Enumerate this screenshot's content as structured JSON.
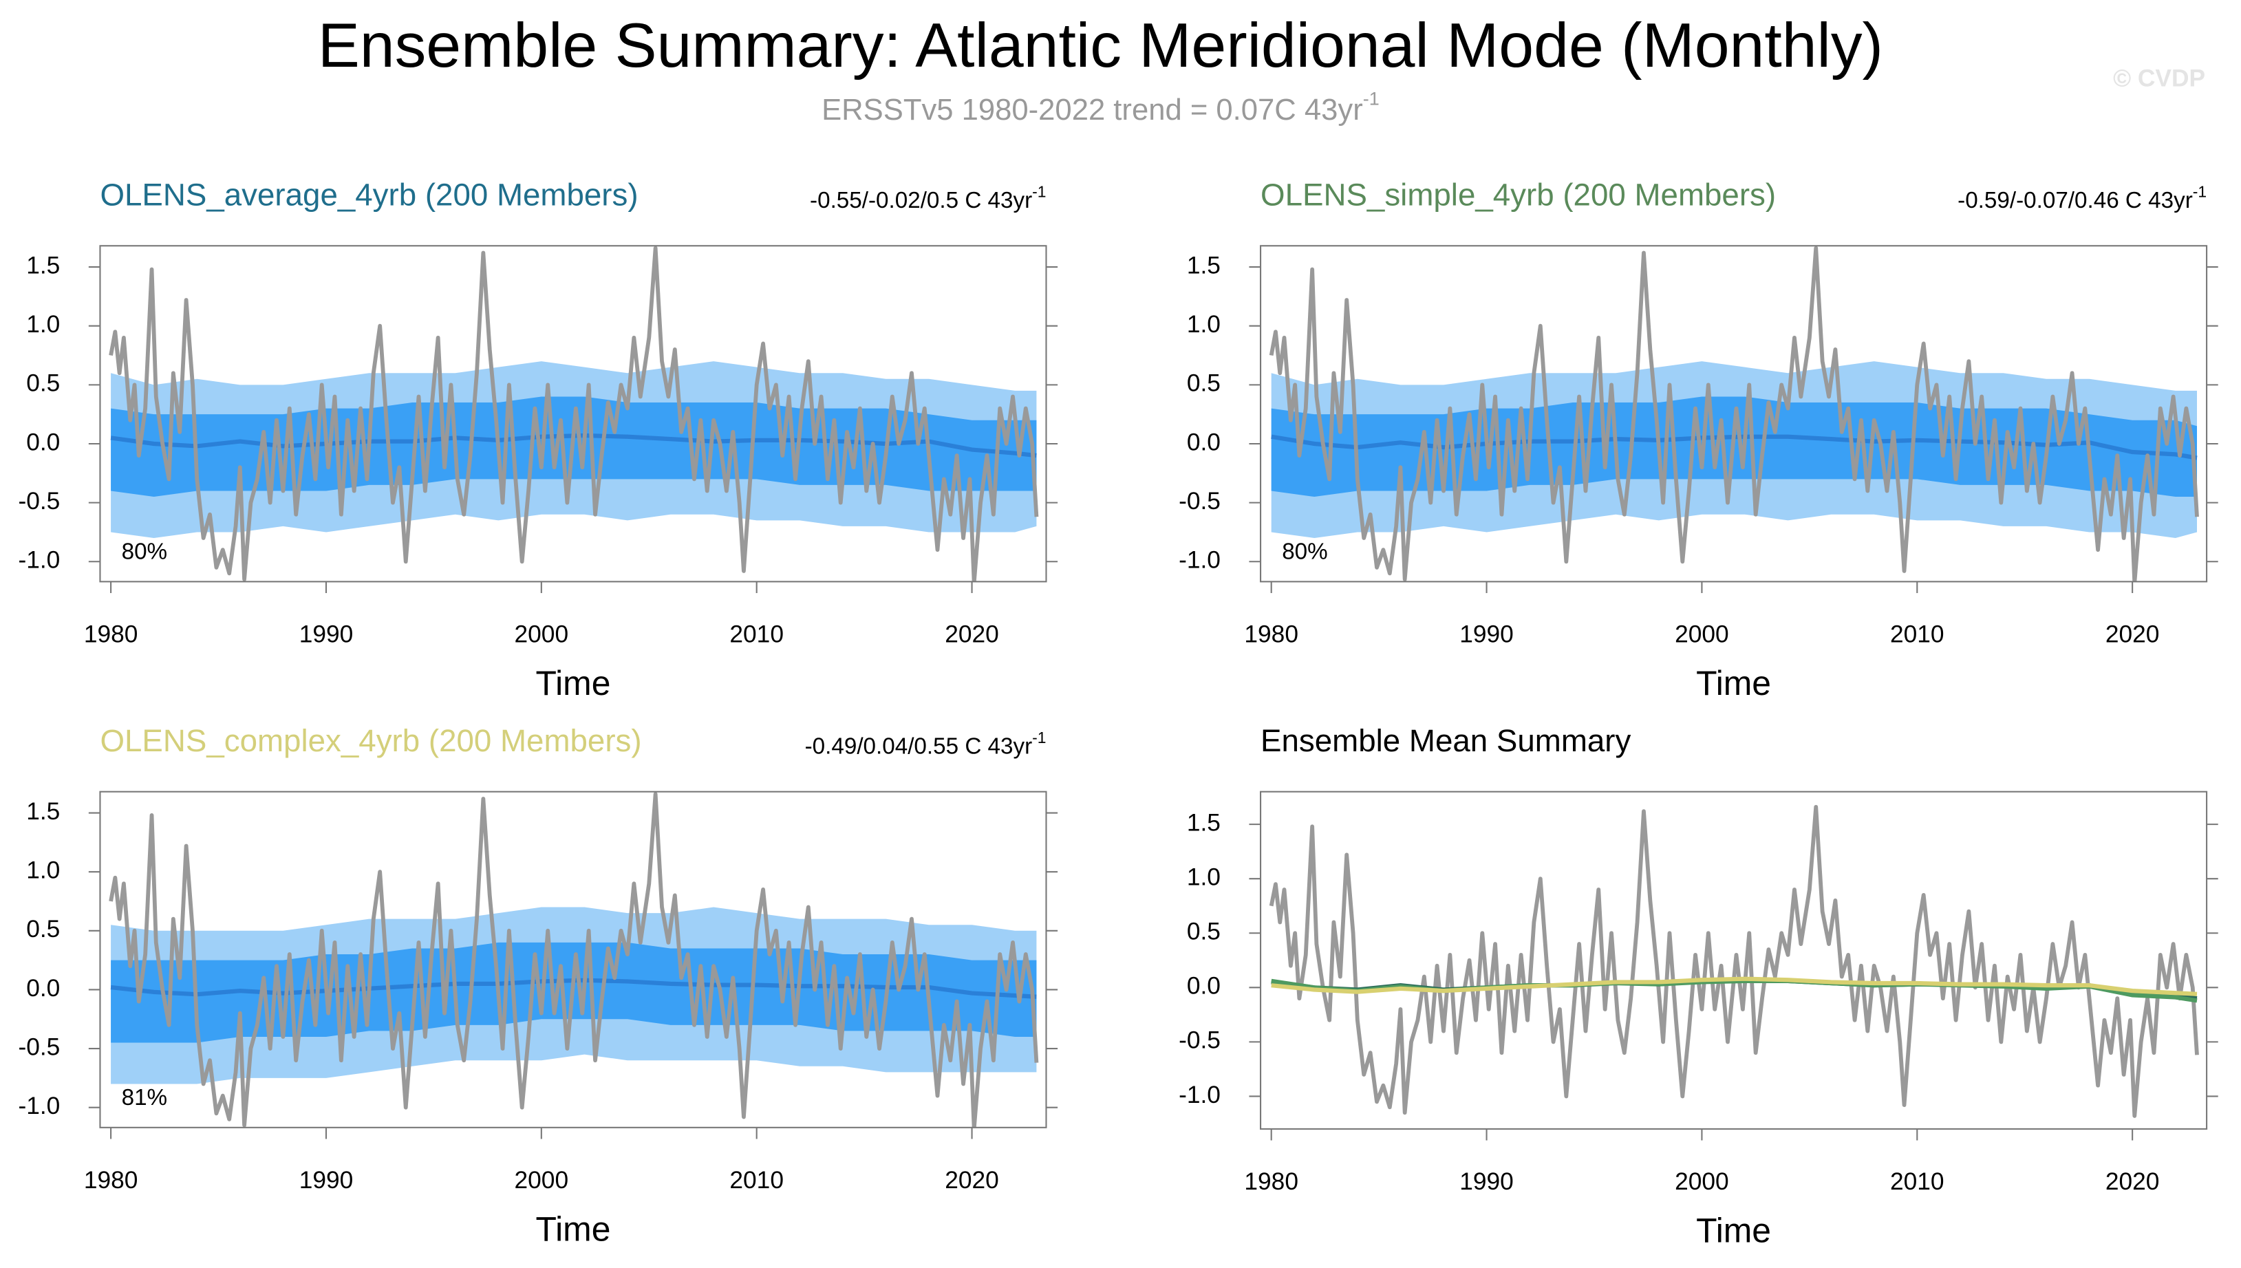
{
  "title": "Ensemble Summary: Atlantic Meridional Mode (Monthly)",
  "subtitle": "ERSSTv5 1980-2022 trend = 0.07C 43yr",
  "subtitle_sup": "-1",
  "watermark": "© CVDP",
  "observed": {
    "color": "#999999",
    "x": [
      1980.0,
      1980.2,
      1980.4,
      1980.6,
      1980.9,
      1981.1,
      1981.3,
      1981.6,
      1981.9,
      1982.1,
      1982.4,
      1982.7,
      1982.9,
      1983.2,
      1983.5,
      1983.8,
      1984.0,
      1984.3,
      1984.6,
      1984.9,
      1985.2,
      1985.5,
      1985.8,
      1986.0,
      1986.2,
      1986.5,
      1986.8,
      1987.1,
      1987.4,
      1987.7,
      1988.0,
      1988.3,
      1988.6,
      1988.9,
      1989.2,
      1989.5,
      1989.8,
      1990.1,
      1990.4,
      1990.7,
      1991.0,
      1991.3,
      1991.6,
      1991.9,
      1992.2,
      1992.5,
      1992.8,
      1993.1,
      1993.4,
      1993.7,
      1994.0,
      1994.3,
      1994.6,
      1994.9,
      1995.2,
      1995.5,
      1995.8,
      1996.1,
      1996.4,
      1996.7,
      1997.0,
      1997.3,
      1997.6,
      1997.9,
      1998.2,
      1998.5,
      1998.8,
      1999.1,
      1999.4,
      1999.7,
      2000.0,
      2000.3,
      2000.6,
      2000.9,
      2001.2,
      2001.6,
      2001.9,
      2002.2,
      2002.5,
      2002.8,
      2003.1,
      2003.4,
      2003.7,
      2004.0,
      2004.3,
      2004.6,
      2005.0,
      2005.3,
      2005.6,
      2005.9,
      2006.2,
      2006.5,
      2006.8,
      2007.1,
      2007.4,
      2007.7,
      2008.0,
      2008.3,
      2008.6,
      2008.9,
      2009.2,
      2009.4,
      2009.7,
      2010.0,
      2010.3,
      2010.6,
      2010.9,
      2011.2,
      2011.5,
      2011.8,
      2012.1,
      2012.4,
      2012.7,
      2013.0,
      2013.3,
      2013.6,
      2013.9,
      2014.2,
      2014.5,
      2014.8,
      2015.1,
      2015.4,
      2015.7,
      2016.0,
      2016.3,
      2016.6,
      2016.9,
      2017.2,
      2017.5,
      2017.8,
      2018.1,
      2018.4,
      2018.7,
      2019.0,
      2019.3,
      2019.6,
      2019.9,
      2020.1,
      2020.4,
      2020.7,
      2021.0,
      2021.3,
      2021.6,
      2021.9,
      2022.2,
      2022.5,
      2022.8,
      2023.0
    ],
    "values": [
      0.75,
      0.95,
      0.6,
      0.9,
      0.2,
      0.5,
      -0.1,
      0.3,
      1.48,
      0.4,
      0.0,
      -0.3,
      0.6,
      0.1,
      1.22,
      0.5,
      -0.3,
      -0.8,
      -0.6,
      -1.05,
      -0.9,
      -1.1,
      -0.7,
      -0.2,
      -1.15,
      -0.5,
      -0.3,
      0.1,
      -0.5,
      0.2,
      -0.4,
      0.3,
      -0.6,
      -0.1,
      0.25,
      -0.3,
      0.5,
      -0.2,
      0.4,
      -0.6,
      0.2,
      -0.4,
      0.3,
      -0.3,
      0.6,
      1.0,
      0.2,
      -0.5,
      -0.2,
      -1.0,
      -0.3,
      0.4,
      -0.4,
      0.3,
      0.9,
      -0.2,
      0.5,
      -0.3,
      -0.6,
      -0.1,
      0.6,
      1.62,
      0.8,
      0.2,
      -0.5,
      0.5,
      -0.3,
      -1.0,
      -0.4,
      0.3,
      -0.2,
      0.5,
      -0.2,
      0.2,
      -0.5,
      0.3,
      -0.2,
      0.5,
      -0.6,
      -0.1,
      0.35,
      0.1,
      0.5,
      0.3,
      0.9,
      0.4,
      0.9,
      1.66,
      0.7,
      0.4,
      0.8,
      0.1,
      0.3,
      -0.3,
      0.2,
      -0.4,
      0.2,
      0.0,
      -0.4,
      0.1,
      -0.5,
      -1.08,
      -0.3,
      0.5,
      0.85,
      0.3,
      0.5,
      -0.1,
      0.4,
      -0.3,
      0.3,
      0.7,
      0.0,
      0.4,
      -0.3,
      0.2,
      -0.5,
      0.1,
      -0.2,
      0.3,
      -0.4,
      0.0,
      -0.5,
      -0.1,
      0.4,
      0.0,
      0.2,
      0.6,
      0.0,
      0.3,
      -0.3,
      -0.9,
      -0.3,
      -0.6,
      -0.1,
      -0.8,
      -0.3,
      -1.18,
      -0.5,
      -0.1,
      -0.6,
      0.3,
      0.0,
      0.4,
      -0.1,
      0.3,
      0.0,
      -0.62
    ]
  },
  "chart_data": [
    {
      "type": "band",
      "title": "OLENS_average_4yrb (200 Members)",
      "title_color": "#1f6e8c",
      "trend_label": "-0.55/-0.02/0.5 C 43yr",
      "trend_sup": "-1",
      "percent_label": "80%",
      "x_label": "Time",
      "xlim": [
        1979.5,
        2023.45
      ],
      "xticks": [
        1980,
        1990,
        2000,
        2010,
        2020
      ],
      "ylim": [
        -1.17,
        1.68
      ],
      "yticks": [
        {
          "value": -1,
          "label": "-1.0"
        },
        -0.5,
        {
          "value": 0,
          "label": "0.0"
        },
        0.5,
        {
          "value": 1,
          "label": "1.0"
        },
        1.5
      ],
      "outer_color": "#9fd0f8",
      "inner_color": "#3aa0f5",
      "mean_color": "#2a80d8",
      "band_x": [
        1980,
        1982,
        1984,
        1986,
        1988,
        1990,
        1992,
        1994,
        1996,
        1998,
        2000,
        2002,
        2004,
        2006,
        2008,
        2010,
        2012,
        2014,
        2016,
        2018,
        2020,
        2022,
        2023
      ],
      "outer_high": [
        0.6,
        0.5,
        0.55,
        0.5,
        0.5,
        0.55,
        0.6,
        0.6,
        0.6,
        0.65,
        0.7,
        0.65,
        0.6,
        0.65,
        0.7,
        0.65,
        0.6,
        0.6,
        0.55,
        0.55,
        0.5,
        0.45,
        0.45
      ],
      "outer_low": [
        -0.75,
        -0.8,
        -0.75,
        -0.75,
        -0.7,
        -0.75,
        -0.7,
        -0.65,
        -0.6,
        -0.65,
        -0.6,
        -0.6,
        -0.65,
        -0.6,
        -0.6,
        -0.65,
        -0.65,
        -0.7,
        -0.7,
        -0.75,
        -0.75,
        -0.75,
        -0.7
      ],
      "inner_high": [
        0.3,
        0.25,
        0.25,
        0.25,
        0.25,
        0.3,
        0.3,
        0.35,
        0.35,
        0.35,
        0.4,
        0.4,
        0.35,
        0.35,
        0.35,
        0.35,
        0.3,
        0.3,
        0.3,
        0.25,
        0.2,
        0.2,
        0.2
      ],
      "inner_low": [
        -0.4,
        -0.45,
        -0.4,
        -0.4,
        -0.4,
        -0.4,
        -0.35,
        -0.35,
        -0.3,
        -0.3,
        -0.3,
        -0.3,
        -0.3,
        -0.3,
        -0.3,
        -0.3,
        -0.35,
        -0.35,
        -0.35,
        -0.4,
        -0.4,
        -0.4,
        -0.4
      ],
      "mean": [
        0.05,
        0.0,
        -0.02,
        0.02,
        -0.02,
        0.0,
        0.02,
        0.02,
        0.05,
        0.03,
        0.06,
        0.07,
        0.06,
        0.04,
        0.02,
        0.03,
        0.03,
        0.02,
        0.0,
        0.02,
        -0.05,
        -0.08,
        -0.1
      ]
    },
    {
      "type": "band",
      "title": "OLENS_simple_4yrb (200 Members)",
      "title_color": "#5a8a5a",
      "trend_label": "-0.59/-0.07/0.46 C 43yr",
      "trend_sup": "-1",
      "percent_label": "80%",
      "x_label": "Time",
      "xlim": [
        1979.5,
        2023.45
      ],
      "xticks": [
        1980,
        1990,
        2000,
        2010,
        2020
      ],
      "ylim": [
        -1.17,
        1.68
      ],
      "yticks": [
        {
          "value": -1,
          "label": "-1.0"
        },
        -0.5,
        {
          "value": 0,
          "label": "0.0"
        },
        0.5,
        {
          "value": 1,
          "label": "1.0"
        },
        1.5
      ],
      "outer_color": "#9fd0f8",
      "inner_color": "#3aa0f5",
      "mean_color": "#2a80d8",
      "band_x": [
        1980,
        1982,
        1984,
        1986,
        1988,
        1990,
        1992,
        1994,
        1996,
        1998,
        2000,
        2002,
        2004,
        2006,
        2008,
        2010,
        2012,
        2014,
        2016,
        2018,
        2020,
        2022,
        2023
      ],
      "outer_high": [
        0.6,
        0.5,
        0.55,
        0.5,
        0.5,
        0.55,
        0.6,
        0.6,
        0.6,
        0.65,
        0.7,
        0.65,
        0.6,
        0.65,
        0.7,
        0.65,
        0.6,
        0.6,
        0.55,
        0.55,
        0.5,
        0.45,
        0.45
      ],
      "outer_low": [
        -0.75,
        -0.8,
        -0.75,
        -0.75,
        -0.7,
        -0.75,
        -0.7,
        -0.65,
        -0.6,
        -0.65,
        -0.6,
        -0.6,
        -0.65,
        -0.6,
        -0.6,
        -0.65,
        -0.65,
        -0.7,
        -0.7,
        -0.75,
        -0.75,
        -0.8,
        -0.75
      ],
      "inner_high": [
        0.3,
        0.25,
        0.25,
        0.25,
        0.25,
        0.3,
        0.3,
        0.35,
        0.35,
        0.35,
        0.4,
        0.4,
        0.35,
        0.35,
        0.35,
        0.35,
        0.3,
        0.3,
        0.3,
        0.25,
        0.2,
        0.2,
        0.15
      ],
      "inner_low": [
        -0.4,
        -0.45,
        -0.4,
        -0.4,
        -0.4,
        -0.4,
        -0.35,
        -0.35,
        -0.3,
        -0.3,
        -0.3,
        -0.3,
        -0.3,
        -0.3,
        -0.3,
        -0.3,
        -0.35,
        -0.35,
        -0.35,
        -0.4,
        -0.4,
        -0.45,
        -0.45
      ],
      "mean": [
        0.06,
        0.0,
        -0.03,
        0.01,
        -0.03,
        0.0,
        0.02,
        0.02,
        0.04,
        0.03,
        0.05,
        0.06,
        0.06,
        0.04,
        0.02,
        0.03,
        0.02,
        0.01,
        -0.01,
        0.01,
        -0.07,
        -0.09,
        -0.12
      ]
    },
    {
      "type": "band",
      "title": "OLENS_complex_4yrb (200 Members)",
      "title_color": "#d4cf7a",
      "trend_label": "-0.49/0.04/0.55 C 43yr",
      "trend_sup": "-1",
      "percent_label": "81%",
      "x_label": "Time",
      "xlim": [
        1979.5,
        2023.45
      ],
      "xticks": [
        1980,
        1990,
        2000,
        2010,
        2020
      ],
      "ylim": [
        -1.17,
        1.68
      ],
      "yticks": [
        {
          "value": -1,
          "label": "-1.0"
        },
        -0.5,
        {
          "value": 0,
          "label": "0.0"
        },
        0.5,
        {
          "value": 1,
          "label": "1.0"
        },
        1.5
      ],
      "outer_color": "#9fd0f8",
      "inner_color": "#3aa0f5",
      "mean_color": "#2a80d8",
      "band_x": [
        1980,
        1982,
        1984,
        1986,
        1988,
        1990,
        1992,
        1994,
        1996,
        1998,
        2000,
        2002,
        2004,
        2006,
        2008,
        2010,
        2012,
        2014,
        2016,
        2018,
        2020,
        2022,
        2023
      ],
      "outer_high": [
        0.55,
        0.5,
        0.5,
        0.5,
        0.5,
        0.55,
        0.6,
        0.6,
        0.6,
        0.65,
        0.7,
        0.7,
        0.65,
        0.65,
        0.7,
        0.65,
        0.6,
        0.6,
        0.6,
        0.55,
        0.55,
        0.5,
        0.5
      ],
      "outer_low": [
        -0.8,
        -0.8,
        -0.8,
        -0.75,
        -0.75,
        -0.75,
        -0.7,
        -0.65,
        -0.6,
        -0.6,
        -0.6,
        -0.55,
        -0.6,
        -0.6,
        -0.6,
        -0.6,
        -0.65,
        -0.65,
        -0.7,
        -0.7,
        -0.7,
        -0.7,
        -0.7
      ],
      "inner_high": [
        0.25,
        0.25,
        0.25,
        0.25,
        0.25,
        0.3,
        0.3,
        0.35,
        0.35,
        0.4,
        0.4,
        0.4,
        0.4,
        0.35,
        0.35,
        0.35,
        0.35,
        0.3,
        0.3,
        0.3,
        0.25,
        0.25,
        0.25
      ],
      "inner_low": [
        -0.45,
        -0.45,
        -0.45,
        -0.4,
        -0.4,
        -0.4,
        -0.35,
        -0.35,
        -0.3,
        -0.3,
        -0.25,
        -0.25,
        -0.25,
        -0.3,
        -0.3,
        -0.3,
        -0.3,
        -0.35,
        -0.35,
        -0.35,
        -0.35,
        -0.4,
        -0.4
      ],
      "mean": [
        0.02,
        -0.02,
        -0.04,
        -0.01,
        -0.03,
        -0.01,
        0.01,
        0.03,
        0.05,
        0.05,
        0.07,
        0.08,
        0.07,
        0.05,
        0.04,
        0.04,
        0.03,
        0.03,
        0.02,
        0.02,
        -0.03,
        -0.05,
        -0.06
      ]
    },
    {
      "type": "line",
      "title": "Ensemble Mean Summary",
      "title_color": "#000000",
      "x_label": "Time",
      "xlim": [
        1979.5,
        2023.45
      ],
      "xticks": [
        1980,
        1990,
        2000,
        2010,
        2020
      ],
      "ylim": [
        -1.3,
        1.8
      ],
      "yticks": [
        {
          "value": -1,
          "label": "-1.0"
        },
        -0.5,
        {
          "value": 0,
          "label": "0.0"
        },
        0.5,
        {
          "value": 1,
          "label": "1.0"
        },
        1.5
      ],
      "x": [
        1980,
        1982,
        1984,
        1986,
        1988,
        1990,
        1992,
        1994,
        1996,
        1998,
        2000,
        2002,
        2004,
        2006,
        2008,
        2010,
        2012,
        2014,
        2016,
        2018,
        2020,
        2022,
        2023
      ],
      "series": [
        {
          "color": "#2a6a5a",
          "values": [
            0.05,
            0.0,
            -0.02,
            0.02,
            -0.02,
            0.0,
            0.02,
            0.02,
            0.05,
            0.03,
            0.06,
            0.07,
            0.06,
            0.04,
            0.02,
            0.03,
            0.03,
            0.02,
            0.0,
            0.02,
            -0.05,
            -0.08,
            -0.1
          ]
        },
        {
          "color": "#4e9a60",
          "values": [
            0.06,
            0.0,
            -0.03,
            0.01,
            -0.03,
            0.0,
            0.02,
            0.02,
            0.04,
            0.03,
            0.05,
            0.06,
            0.06,
            0.04,
            0.02,
            0.03,
            0.02,
            0.01,
            -0.01,
            0.01,
            -0.07,
            -0.09,
            -0.12
          ]
        },
        {
          "color": "#d8d070",
          "values": [
            0.02,
            -0.02,
            -0.04,
            -0.01,
            -0.03,
            -0.01,
            0.01,
            0.03,
            0.05,
            0.05,
            0.07,
            0.08,
            0.07,
            0.05,
            0.04,
            0.04,
            0.03,
            0.03,
            0.02,
            0.02,
            -0.03,
            -0.05,
            -0.06
          ]
        }
      ]
    }
  ]
}
